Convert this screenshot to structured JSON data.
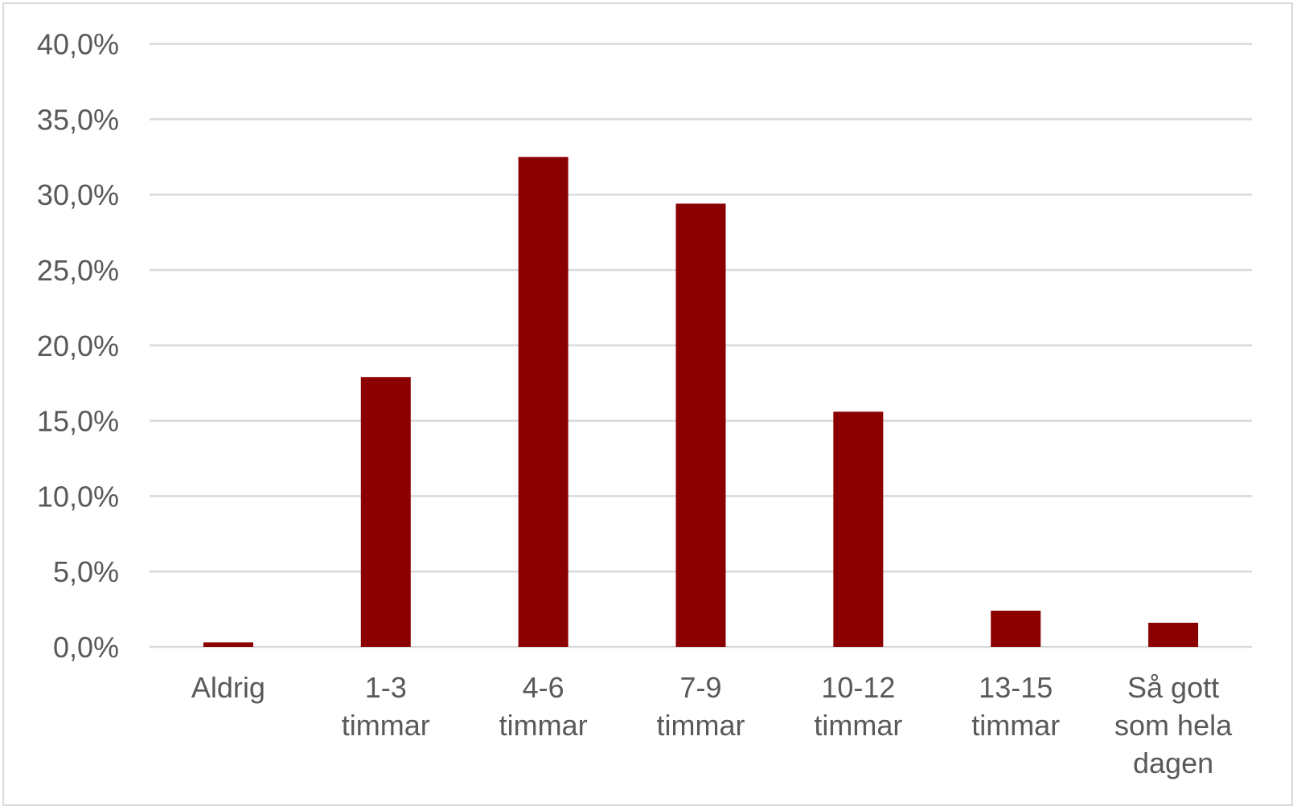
{
  "chart_data": {
    "type": "bar",
    "title": "",
    "xlabel": "",
    "ylabel": "",
    "categories": [
      [
        "Aldrig"
      ],
      [
        "1-3",
        "timmar"
      ],
      [
        "4-6",
        "timmar"
      ],
      [
        "7-9",
        "timmar"
      ],
      [
        "10-12",
        "timmar"
      ],
      [
        "13-15",
        "timmar"
      ],
      [
        "Så gott",
        "som hela",
        "dagen"
      ]
    ],
    "values": [
      0.3,
      17.9,
      32.5,
      29.4,
      15.6,
      2.4,
      1.6
    ],
    "unit": "%",
    "ylim": [
      0,
      40
    ],
    "yticks": [
      0,
      5,
      10,
      15,
      20,
      25,
      30,
      35,
      40
    ],
    "ytick_labels": [
      "0,0%",
      "5,0%",
      "10,0%",
      "15,0%",
      "20,0%",
      "25,0%",
      "30,0%",
      "35,0%",
      "40,0%"
    ],
    "grid": true,
    "legend": "none",
    "bar_color": "#8b0000",
    "grid_color": "#d9d9d9"
  }
}
